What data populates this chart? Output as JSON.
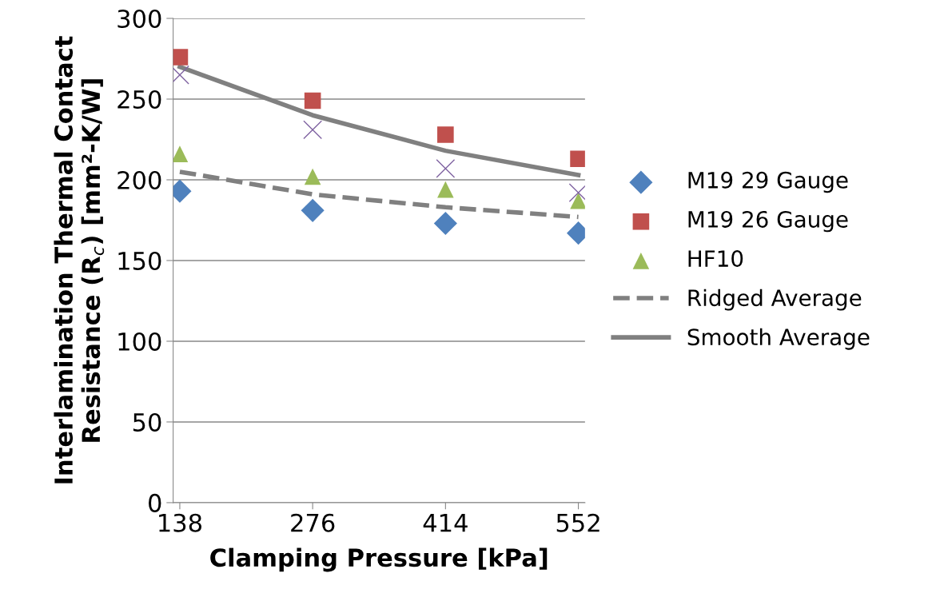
{
  "chart_data": {
    "type": "scatter",
    "xlabel": "Clamping Pressure [kPa]",
    "ylabel": "Interlamination Thermal Contact\nResistance (R$_{c}$) [mm²-K/W]",
    "categories": [
      "138",
      "276",
      "414",
      "552"
    ],
    "ylim": [
      0,
      300
    ],
    "yticks": [
      0,
      50,
      100,
      150,
      200,
      250,
      300
    ],
    "grid": "y",
    "legend": "right",
    "series": [
      {
        "name": "M19 29 Gauge",
        "color": "#4f81bd",
        "marker": "diamond",
        "values": [
          193,
          181,
          173,
          167
        ]
      },
      {
        "name": "M19 26 Gauge",
        "color": "#c0504d",
        "marker": "square",
        "values": [
          276,
          249,
          228,
          213
        ]
      },
      {
        "name": "HF10",
        "color": "#9bbb59",
        "marker": "triangle",
        "values": [
          216,
          202,
          194,
          187
        ]
      },
      {
        "color": "#8064a2",
        "marker": "cross",
        "values": [
          265,
          231,
          207,
          192
        ]
      },
      {
        "name": "Ridged Average",
        "type": "line",
        "color": "#808080",
        "marker": "none",
        "line_style": "dashed",
        "values": [
          205,
          191,
          183,
          177
        ]
      },
      {
        "name": "Smooth Average",
        "type": "line",
        "color": "#808080",
        "marker": "none",
        "line_style": "solid",
        "values": [
          270,
          240,
          218,
          203
        ]
      }
    ]
  }
}
